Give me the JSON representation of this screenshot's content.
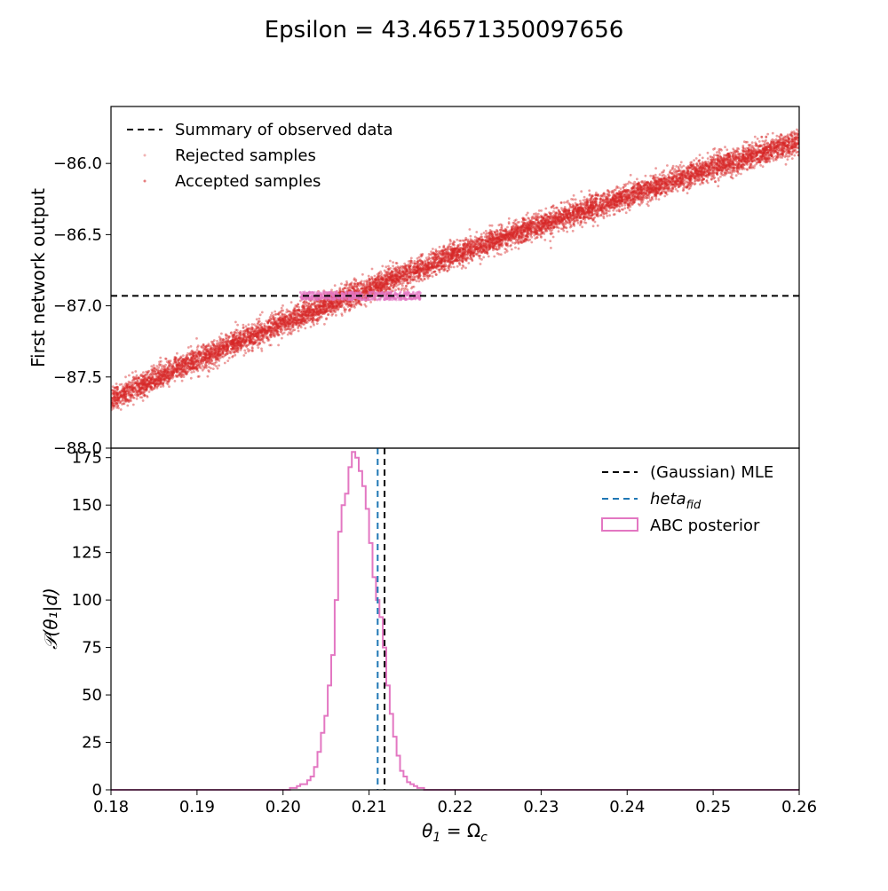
{
  "figure_title": "Epsilon = 43.46571350097656",
  "colors": {
    "rejected": "#d62728",
    "accepted": "#e377c2",
    "observed_line": "#000000",
    "mle_line": "#000000",
    "fid_line": "#1f77b4",
    "hist_edge": "#e377c2"
  },
  "chart_data": [
    {
      "type": "scatter",
      "name": "top-scatter",
      "xlim": [
        0.18,
        0.26
      ],
      "ylim": [
        -88.0,
        -85.6
      ],
      "ylabel": "First network output",
      "yticks": [
        -88.0,
        -87.5,
        -87.0,
        -86.5,
        -86.0
      ],
      "ytick_labels": [
        "−88.0",
        "−87.5",
        "−87.0",
        "−86.5",
        "−86.0"
      ],
      "summary_observed_y": -86.93,
      "rejected_band": {
        "x": [
          0.18,
          0.19,
          0.2,
          0.21,
          0.22,
          0.23,
          0.24,
          0.25,
          0.26
        ],
        "y_center": [
          -87.66,
          -87.38,
          -87.12,
          -86.88,
          -86.64,
          -86.43,
          -86.23,
          -86.03,
          -85.85
        ],
        "y_halfwidth": 0.07
      },
      "accepted_samples": {
        "x_range": [
          0.202,
          0.216
        ],
        "y_range": [
          -86.96,
          -86.9
        ]
      },
      "legend": [
        {
          "label": "Summary of observed data",
          "kind": "dashed-line"
        },
        {
          "label": "Rejected samples",
          "kind": "dot"
        },
        {
          "label": "Accepted samples",
          "kind": "dot"
        }
      ]
    },
    {
      "type": "histogram",
      "name": "bottom-posterior",
      "xlim": [
        0.18,
        0.26
      ],
      "ylim": [
        0,
        180
      ],
      "xlabel_main": "θ",
      "xlabel_sub": "1",
      "xlabel_rest": " = Ω",
      "xlabel_sub2": "c",
      "ylabel": "𝒫(θ₁|d)",
      "xticks": [
        0.18,
        0.19,
        0.2,
        0.21,
        0.22,
        0.23,
        0.24,
        0.25,
        0.26
      ],
      "xtick_labels": [
        "0.18",
        "0.19",
        "0.20",
        "0.21",
        "0.22",
        "0.23",
        "0.24",
        "0.25",
        "0.26"
      ],
      "yticks": [
        0,
        25,
        50,
        75,
        100,
        125,
        150,
        175
      ],
      "ytick_labels": [
        "0",
        "25",
        "50",
        "75",
        "100",
        "125",
        "150",
        "175"
      ],
      "mle_x": 0.2118,
      "fid_x": 0.211,
      "bin_edges": [
        0.1976,
        0.198,
        0.1984,
        0.1988,
        0.1992,
        0.1996,
        0.2,
        0.2004,
        0.2008,
        0.2012,
        0.2016,
        0.202,
        0.2024,
        0.2028,
        0.2032,
        0.2036,
        0.204,
        0.2044,
        0.2048,
        0.2052,
        0.2056,
        0.206,
        0.2064,
        0.2068,
        0.2072,
        0.2076,
        0.208,
        0.2084,
        0.2088,
        0.2092,
        0.2096,
        0.21,
        0.2104,
        0.2108,
        0.2112,
        0.2116,
        0.212,
        0.2124,
        0.2128,
        0.2132,
        0.2136,
        0.214,
        0.2144,
        0.2148,
        0.2152,
        0.2156,
        0.216,
        0.2164,
        0.2168,
        0.2172
      ],
      "counts": [
        0,
        0,
        0,
        0,
        0,
        0,
        0,
        0,
        1,
        1,
        2,
        3,
        3,
        5,
        7,
        12,
        20,
        30,
        39,
        55,
        71,
        100,
        136,
        150,
        156,
        170,
        178,
        175,
        168,
        160,
        148,
        130,
        112,
        100,
        91,
        75,
        55,
        40,
        28,
        18,
        10,
        7,
        4,
        3,
        2,
        1,
        1,
        0,
        0
      ],
      "legend": [
        {
          "label": "(Gaussian) MLE",
          "kind": "dashed-line"
        },
        {
          "label_main": "heta",
          "label_sub": "fid",
          "kind": "dashed-line"
        },
        {
          "label": "ABC posterior",
          "kind": "box"
        }
      ]
    }
  ]
}
